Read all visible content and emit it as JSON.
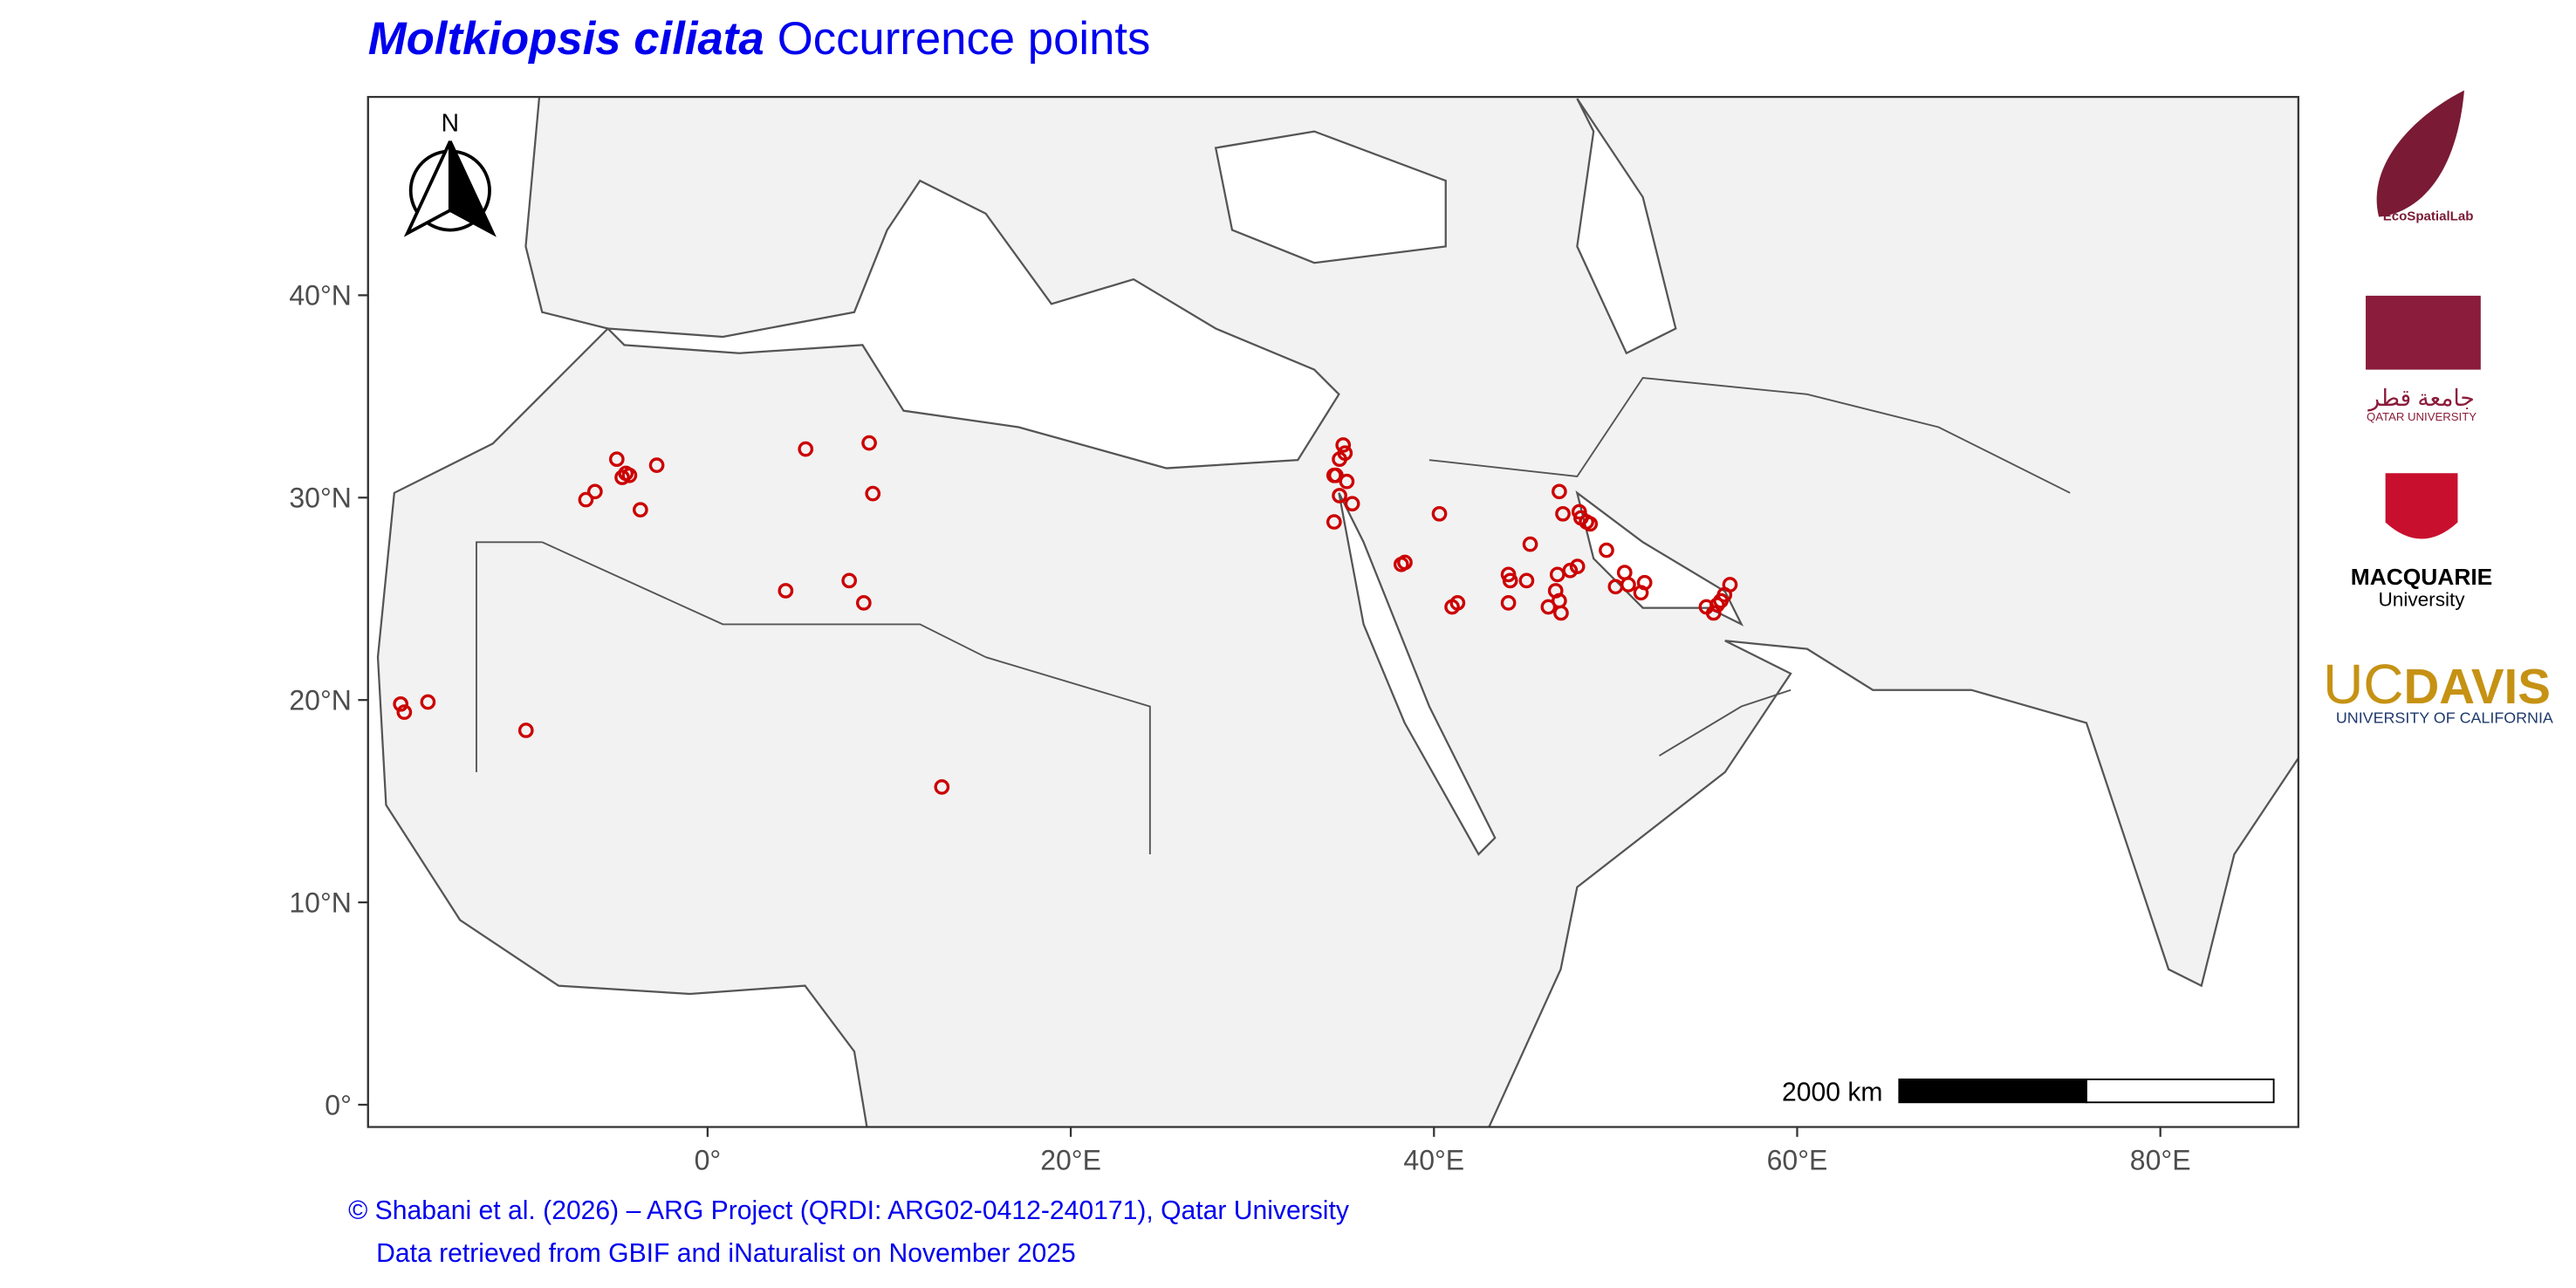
{
  "chart_data": {
    "type": "scatter",
    "title_italic": "Moltkiopsis ciliata",
    "title": "Occurrence points",
    "x": [
      -5.0,
      -4.5,
      -4.3,
      -4.7,
      -2.8,
      -6.2,
      -6.7,
      -3.7,
      5.4,
      8.9,
      9.1,
      4.3,
      7.8,
      8.6,
      -16.9,
      -16.7,
      -15.4,
      -10.0,
      12.9,
      35.0,
      34.8,
      34.5,
      35.2,
      35.5,
      34.5,
      34.8,
      34.6,
      35.1,
      38.2,
      38.4,
      40.3,
      41.0,
      41.3,
      44.1,
      44.2,
      44.1,
      45.1,
      45.3,
      46.9,
      47.1,
      46.8,
      47.5,
      47.9,
      46.7,
      46.3,
      47.0,
      46.9,
      48.0,
      48.4,
      48.1,
      48.6,
      49.5,
      50.5,
      50.0,
      50.7,
      51.6,
      51.4,
      55.0,
      55.4,
      55.8,
      56.3,
      56.0,
      55.6
    ],
    "values": [
      31.9,
      31.2,
      31.1,
      31.0,
      31.6,
      30.3,
      29.9,
      29.4,
      32.4,
      32.7,
      30.2,
      25.4,
      25.9,
      24.8,
      19.8,
      19.4,
      19.9,
      18.5,
      15.7,
      32.6,
      31.9,
      31.1,
      30.8,
      29.7,
      28.8,
      30.1,
      31.1,
      32.2,
      26.7,
      26.8,
      29.2,
      24.6,
      24.8,
      26.2,
      25.9,
      24.8,
      25.9,
      27.7,
      30.3,
      29.2,
      26.2,
      26.4,
      26.6,
      25.4,
      24.6,
      24.3,
      24.9,
      29.3,
      28.8,
      29.0,
      28.7,
      27.4,
      26.3,
      25.6,
      25.7,
      25.8,
      25.3,
      24.6,
      24.3,
      24.9,
      25.7,
      25.2,
      24.7
    ],
    "color": "#cc0000",
    "xlim": [
      -18.7,
      87.6
    ],
    "ylim": [
      -1.1,
      49.8
    ],
    "xticks": [
      {
        "value": 0,
        "label": "0°"
      },
      {
        "value": 20,
        "label": "20°E"
      },
      {
        "value": 40,
        "label": "40°E"
      },
      {
        "value": 60,
        "label": "60°E"
      },
      {
        "value": 80,
        "label": "80°E"
      }
    ],
    "yticks": [
      {
        "value": 0,
        "label": "0°"
      },
      {
        "value": 10,
        "label": "10°N"
      },
      {
        "value": 20,
        "label": "20°N"
      },
      {
        "value": 30,
        "label": "30°N"
      },
      {
        "value": 40,
        "label": "40°N"
      }
    ],
    "north_label": "N",
    "scale_label": "2000 km",
    "caption": [
      "© Shabani et al. (2026) – ARG Project (QRDI: ARG02-0412-240171), Qatar University",
      "Data retrieved from GBIF and iNaturalist on November 2025"
    ]
  },
  "logos": {
    "ecospatial": "EcoSpatialLab",
    "qatar_arabic": "جامعة قطر",
    "qatar": "QATAR UNIVERSITY",
    "macquarie": "MACQUARIE",
    "macquarie_sub": "University",
    "ucdavis_uc": "UC",
    "ucdavis_davis": "DAVIS",
    "ucdavis_sub": "UNIVERSITY OF CALIFORNIA"
  }
}
